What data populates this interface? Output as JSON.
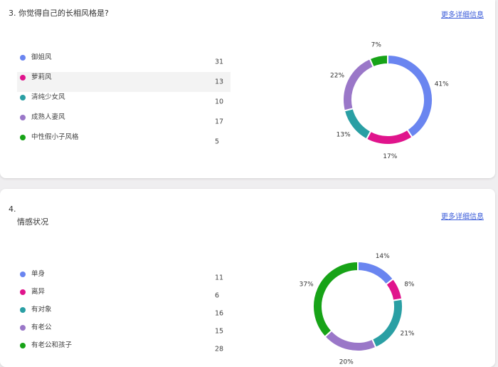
{
  "colors": [
    "#6a85f0",
    "#e0148c",
    "#2a9fa4",
    "#9a77c8",
    "#17a317"
  ],
  "q1": {
    "title": "3. 你觉得自己的长相风格是?",
    "more": "更多详细信息",
    "items": [
      {
        "label": "御姐风",
        "count": 31
      },
      {
        "label": "萝莉风",
        "count": 13
      },
      {
        "label": "清纯少女风",
        "count": 10
      },
      {
        "label": "成熟人妻风",
        "count": 17
      },
      {
        "label": "中性假小子风格",
        "count": 5
      }
    ]
  },
  "q2": {
    "number": "4.",
    "title": "情感状况",
    "more": "更多详细信息",
    "items": [
      {
        "label": "单身",
        "count": 11
      },
      {
        "label": "离异",
        "count": 6
      },
      {
        "label": "有对象",
        "count": 16
      },
      {
        "label": "有老公",
        "count": 15
      },
      {
        "label": "有老公和孩子",
        "count": 28
      }
    ]
  },
  "chart_data": [
    {
      "type": "pie",
      "donut": true,
      "categories": [
        "御姐风",
        "萝莉风",
        "清纯少女风",
        "成熟人妻风",
        "中性假小子风格"
      ],
      "values": [
        31,
        13,
        10,
        17,
        5
      ],
      "data_labels": [
        "41%",
        "17%",
        "13%",
        "22%",
        "7%"
      ]
    },
    {
      "type": "pie",
      "donut": true,
      "categories": [
        "单身",
        "离异",
        "有对象",
        "有老公",
        "有老公和孩子"
      ],
      "values": [
        11,
        6,
        16,
        15,
        28
      ],
      "data_labels": [
        "14%",
        "8%",
        "21%",
        "20%",
        "37%"
      ]
    }
  ]
}
